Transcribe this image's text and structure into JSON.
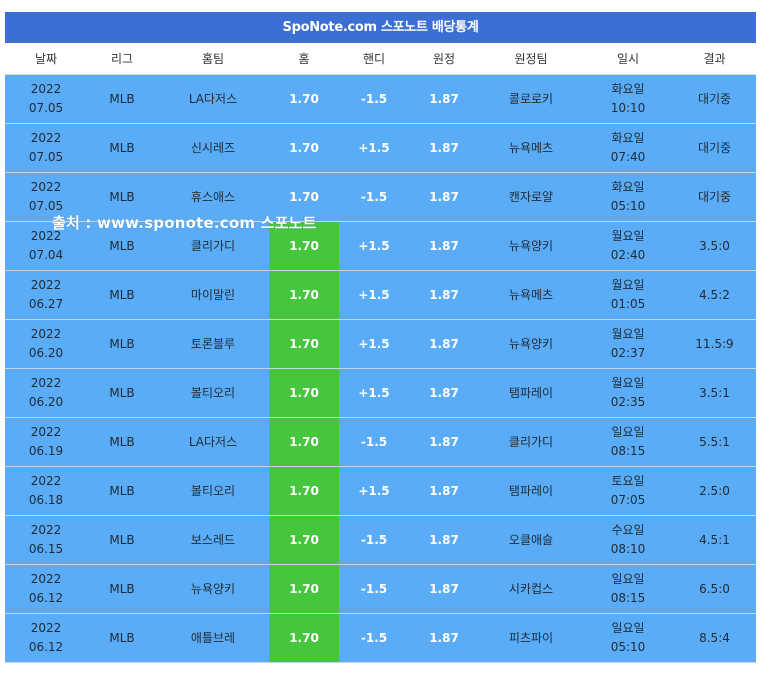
{
  "header": {
    "title": "SpoNote.com 스포노트 배당통계"
  },
  "columns": [
    "날짜",
    "리그",
    "홈팀",
    "홈",
    "핸디",
    "원정",
    "원정팀",
    "일시",
    "결과"
  ],
  "rows": [
    {
      "date1": "2022",
      "date2": "07.05",
      "league": "MLB",
      "home_team": "LA다저스",
      "home_odds": "1.70",
      "handi": "-1.5",
      "away_odds": "1.87",
      "away_team": "콜로로키",
      "day": "화요일",
      "time": "10:10",
      "result": "대기중",
      "home_hl": false
    },
    {
      "date1": "2022",
      "date2": "07.05",
      "league": "MLB",
      "home_team": "신시레즈",
      "home_odds": "1.70",
      "handi": "+1.5",
      "away_odds": "1.87",
      "away_team": "뉴욕메츠",
      "day": "화요일",
      "time": "07:40",
      "result": "대기중",
      "home_hl": false
    },
    {
      "date1": "2022",
      "date2": "07.05",
      "league": "MLB",
      "home_team": "휴스애스",
      "home_odds": "1.70",
      "handi": "-1.5",
      "away_odds": "1.87",
      "away_team": "캔자로얄",
      "day": "화요일",
      "time": "05:10",
      "result": "대기중",
      "home_hl": false
    },
    {
      "date1": "2022",
      "date2": "07.04",
      "league": "MLB",
      "home_team": "클리가디",
      "home_odds": "1.70",
      "handi": "+1.5",
      "away_odds": "1.87",
      "away_team": "뉴욕양키",
      "day": "월요일",
      "time": "02:40",
      "result": "3.5:0",
      "home_hl": true
    },
    {
      "date1": "2022",
      "date2": "06.27",
      "league": "MLB",
      "home_team": "마이말린",
      "home_odds": "1.70",
      "handi": "+1.5",
      "away_odds": "1.87",
      "away_team": "뉴욕메츠",
      "day": "월요일",
      "time": "01:05",
      "result": "4.5:2",
      "home_hl": true
    },
    {
      "date1": "2022",
      "date2": "06.20",
      "league": "MLB",
      "home_team": "토론블루",
      "home_odds": "1.70",
      "handi": "+1.5",
      "away_odds": "1.87",
      "away_team": "뉴욕양키",
      "day": "월요일",
      "time": "02:37",
      "result": "11.5:9",
      "home_hl": true
    },
    {
      "date1": "2022",
      "date2": "06.20",
      "league": "MLB",
      "home_team": "볼티오리",
      "home_odds": "1.70",
      "handi": "+1.5",
      "away_odds": "1.87",
      "away_team": "탬파레이",
      "day": "월요일",
      "time": "02:35",
      "result": "3.5:1",
      "home_hl": true
    },
    {
      "date1": "2022",
      "date2": "06.19",
      "league": "MLB",
      "home_team": "LA다저스",
      "home_odds": "1.70",
      "handi": "-1.5",
      "away_odds": "1.87",
      "away_team": "클리가디",
      "day": "일요일",
      "time": "08:15",
      "result": "5.5:1",
      "home_hl": true
    },
    {
      "date1": "2022",
      "date2": "06.18",
      "league": "MLB",
      "home_team": "볼티오리",
      "home_odds": "1.70",
      "handi": "+1.5",
      "away_odds": "1.87",
      "away_team": "탬파레이",
      "day": "토요일",
      "time": "07:05",
      "result": "2.5:0",
      "home_hl": true
    },
    {
      "date1": "2022",
      "date2": "06.15",
      "league": "MLB",
      "home_team": "보스레드",
      "home_odds": "1.70",
      "handi": "-1.5",
      "away_odds": "1.87",
      "away_team": "오클애슬",
      "day": "수요일",
      "time": "08:10",
      "result": "4.5:1",
      "home_hl": true
    },
    {
      "date1": "2022",
      "date2": "06.12",
      "league": "MLB",
      "home_team": "뉴욕양키",
      "home_odds": "1.70",
      "handi": "-1.5",
      "away_odds": "1.87",
      "away_team": "시카컵스",
      "day": "일요일",
      "time": "08:15",
      "result": "6.5:0",
      "home_hl": true
    },
    {
      "date1": "2022",
      "date2": "06.12",
      "league": "MLB",
      "home_team": "애틀브레",
      "home_odds": "1.70",
      "handi": "-1.5",
      "away_odds": "1.87",
      "away_team": "피츠파이",
      "day": "일요일",
      "time": "05:10",
      "result": "8.5:4",
      "home_hl": true
    }
  ],
  "watermark": "출처 : www.sponote.com 스포노트",
  "colors": {
    "header_bg": "#3c6fd4",
    "row_bg": "#5aacf6",
    "highlight": "#45c63c"
  }
}
